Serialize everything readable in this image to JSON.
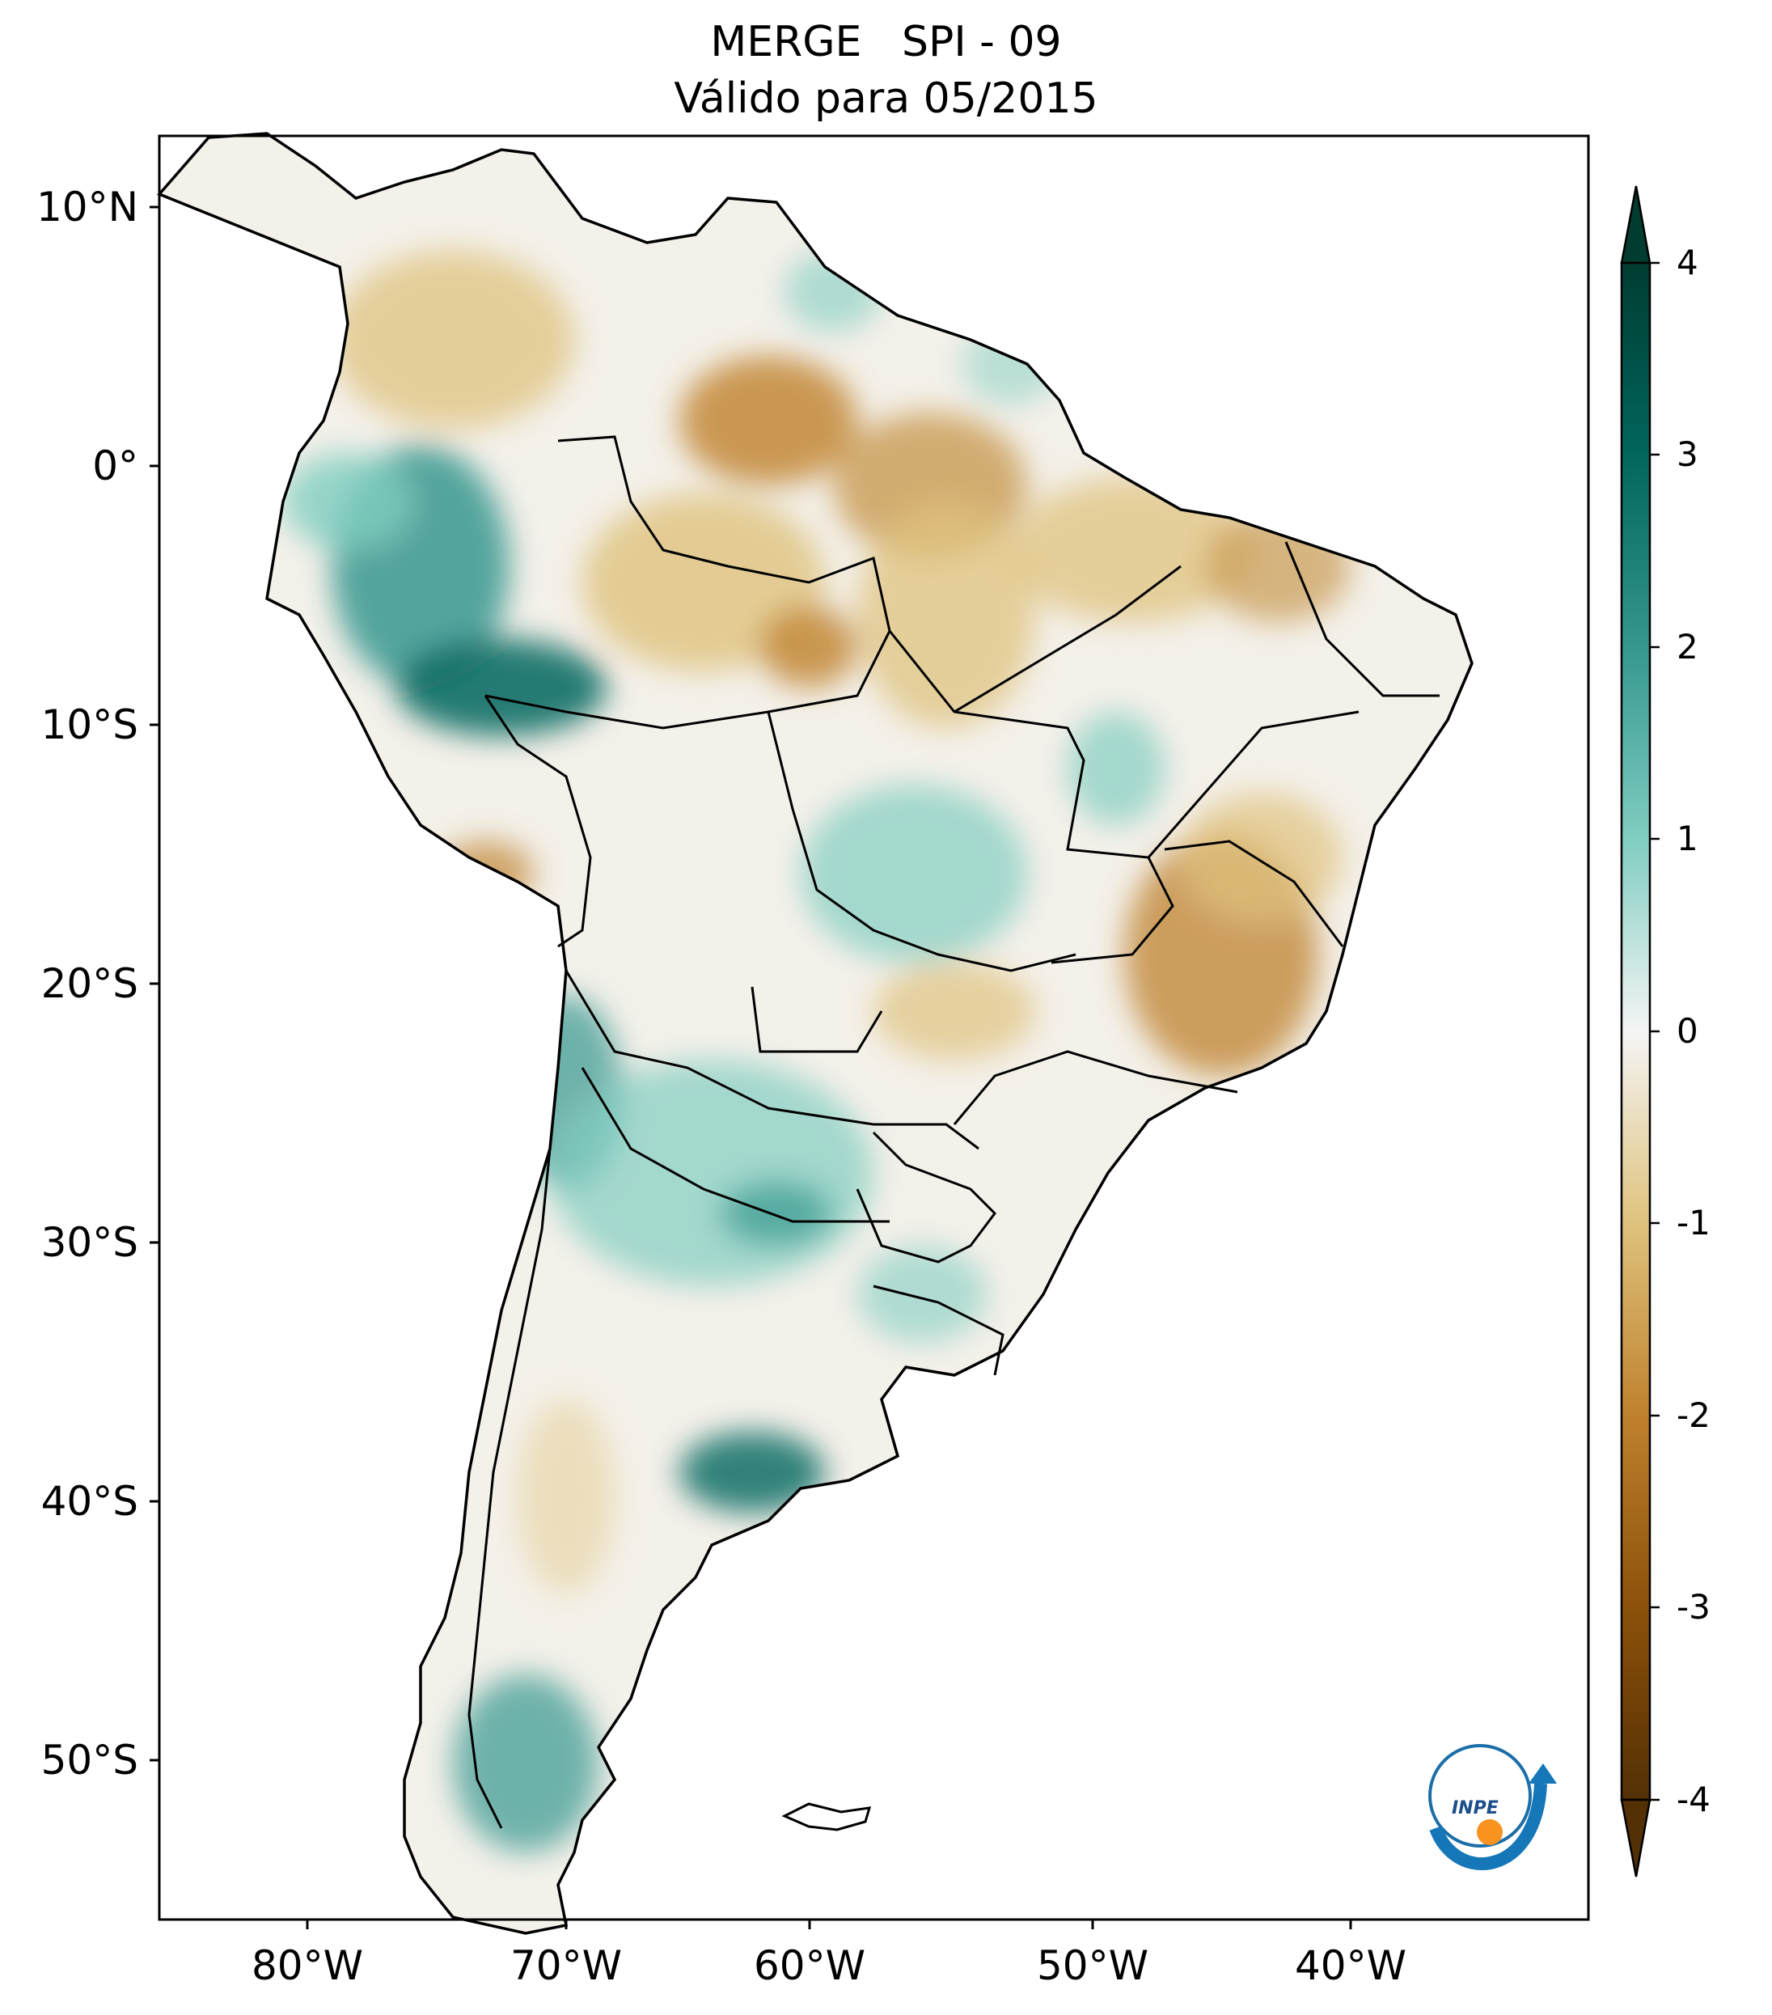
{
  "title": {
    "line1": "MERGE   SPI - 09",
    "line2": "Válido para 05/2015"
  },
  "axes": {
    "lat_labels": [
      "10°N",
      "0°",
      "10°S",
      "20°S",
      "30°S",
      "40°S",
      "50°S"
    ],
    "lon_labels": [
      "80°W",
      "70°W",
      "60°W",
      "50°W",
      "40°W"
    ]
  },
  "colorbar": {
    "ticks": [
      "4",
      "3",
      "2",
      "1",
      "0",
      "-1",
      "-2",
      "-3",
      "-4"
    ],
    "range": [
      -4,
      4
    ],
    "extend": "both",
    "colormap": "BrBG",
    "colors": {
      "max": "#003c30",
      "high": "#01665e",
      "mid_high": "#35978f",
      "low_high": "#80cdc1",
      "zero": "#f5f5f5",
      "low_low": "#dfc27d",
      "mid_low": "#bf812d",
      "low": "#8c510a",
      "min": "#543005"
    }
  },
  "map": {
    "region": "South America",
    "variable": "SPI - 09",
    "lon_range": [
      -85,
      -30
    ],
    "lat_range": [
      -56,
      13
    ]
  },
  "logo": {
    "text": "INPE"
  }
}
